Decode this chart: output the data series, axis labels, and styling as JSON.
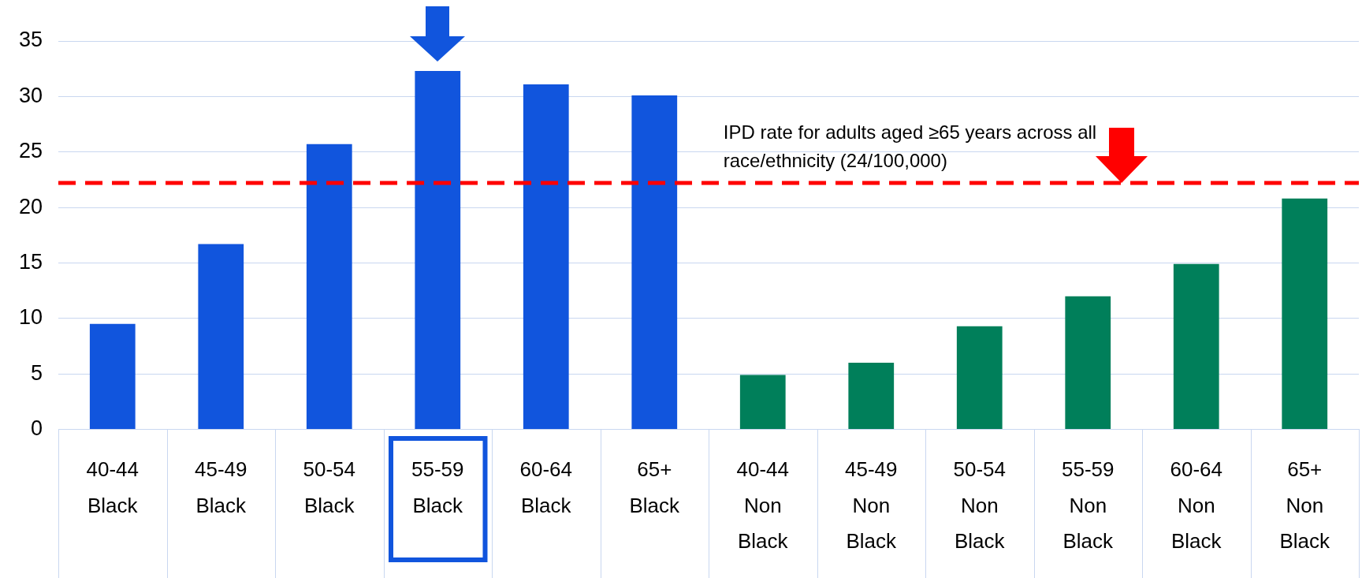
{
  "chart_data": {
    "type": "bar",
    "categories": [
      "40-44\nBlack",
      "45-49\nBlack",
      "50-54\nBlack",
      "55-59\nBlack",
      "60-64\nBlack",
      "65+\nBlack",
      "40-44\nNon\nBlack",
      "45-49\nNon\nBlack",
      "50-54\nNon\nBlack",
      "55-59\nNon\nBlack",
      "60-64\nNon\nBlack",
      "65+\nNon\nBlack"
    ],
    "values": [
      9.5,
      16.7,
      25.7,
      32.3,
      31.1,
      30.1,
      4.9,
      6.0,
      9.3,
      12.0,
      14.9,
      20.8
    ],
    "colors": [
      "#1155dd",
      "#1155dd",
      "#1155dd",
      "#1155dd",
      "#1155dd",
      "#1155dd",
      "#007f5a",
      "#007f5a",
      "#007f5a",
      "#007f5a",
      "#007f5a",
      "#007f5a"
    ],
    "ylim": [
      0,
      35
    ],
    "yticks": [
      0,
      5,
      10,
      15,
      20,
      25,
      30,
      35
    ],
    "grid": true,
    "ref_lines": [
      {
        "axis": "y",
        "value": 22.2,
        "label": "IPD rate for adults aged ≥65 years across all race/ethnicity (24/100,000)",
        "color": "#ff0000",
        "line_style": "dashed"
      }
    ]
  }
}
